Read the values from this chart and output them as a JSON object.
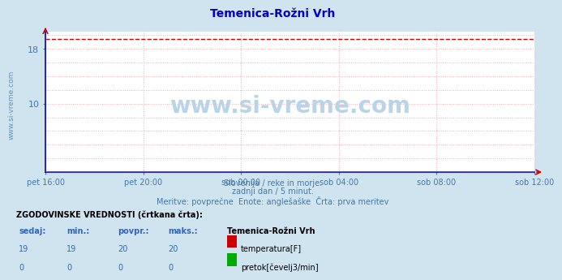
{
  "title": "Temenica-Rožni Vrh",
  "title_color": "#0000cc",
  "bg_color": "#d0e4f0",
  "plot_bg_color": "#ffffff",
  "grid_color": "#ffaaaa",
  "watermark_text": "www.si-vreme.com",
  "subtitle_lines": [
    "Slovenija / reke in morje.",
    "zadnji dan / 5 minut.",
    "Meritve: povprečne  Enote: anglešaške  Črta: prva meritev"
  ],
  "ylim": [
    0,
    20.5
  ],
  "yticks": [
    10,
    18
  ],
  "xtick_labels": [
    "pet 16:00",
    "pet 20:00",
    "sob 00:00",
    "sob 04:00",
    "sob 08:00",
    "sob 12:00"
  ],
  "n_points": 289,
  "temp_value": 19.4,
  "pretok_value": 0.0,
  "temp_color": "#cc0000",
  "pretok_color": "#00aa00",
  "axis_color": "#0000cc",
  "tick_color": "#4477aa",
  "table_header": "ZGODOVINSKE VREDNOSTI (črtkana črta):",
  "table_cols": [
    "sedaj:",
    "min.:",
    "povpr.:",
    "maks.:"
  ],
  "table_col_color": "#3366bb",
  "temp_row": [
    "19",
    "19",
    "20",
    "20"
  ],
  "pretok_row": [
    "0",
    "0",
    "0",
    "0"
  ],
  "legend_station": "Temenica-Rožni Vrh",
  "legend_temp": "temperatura[F]",
  "legend_pretok": "pretok[čevelj3/min]",
  "temp_swatch_color": "#cc0000",
  "pretok_swatch_color": "#00aa00",
  "watermark_color": "#b8d4e8"
}
